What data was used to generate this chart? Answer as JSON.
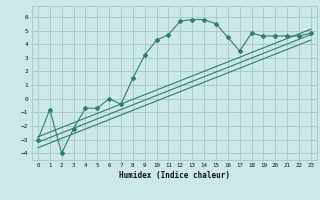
{
  "xlabel": "Humidex (Indice chaleur)",
  "bg_color": "#cce8e8",
  "grid_color": "#aacccc",
  "line_color": "#2e7d6e",
  "xlim": [
    -0.5,
    23.5
  ],
  "ylim": [
    -4.5,
    6.8
  ],
  "xticks": [
    0,
    1,
    2,
    3,
    4,
    5,
    6,
    7,
    8,
    9,
    10,
    11,
    12,
    13,
    14,
    15,
    16,
    17,
    18,
    19,
    20,
    21,
    22,
    23
  ],
  "yticks": [
    -4,
    -3,
    -2,
    -1,
    0,
    1,
    2,
    3,
    4,
    5,
    6
  ],
  "curve_x": [
    0,
    1,
    2,
    3,
    4,
    5,
    6,
    7,
    8,
    9,
    10,
    11,
    12,
    13,
    14,
    15,
    16,
    17,
    18,
    19,
    20,
    21,
    22,
    23
  ],
  "curve_y": [
    -3.0,
    -0.8,
    -4.0,
    -2.2,
    -0.7,
    -0.7,
    0.0,
    -0.4,
    1.5,
    3.2,
    4.3,
    4.7,
    5.7,
    5.8,
    5.8,
    5.5,
    4.5,
    3.5,
    4.8,
    4.6,
    4.6,
    4.6,
    4.6,
    4.8
  ],
  "line1_x": [
    0,
    23
  ],
  "line1_y": [
    -3.2,
    4.7
  ],
  "line2_x": [
    0,
    23
  ],
  "line2_y": [
    -2.8,
    5.1
  ],
  "line3_x": [
    0,
    23
  ],
  "line3_y": [
    -3.6,
    4.3
  ]
}
